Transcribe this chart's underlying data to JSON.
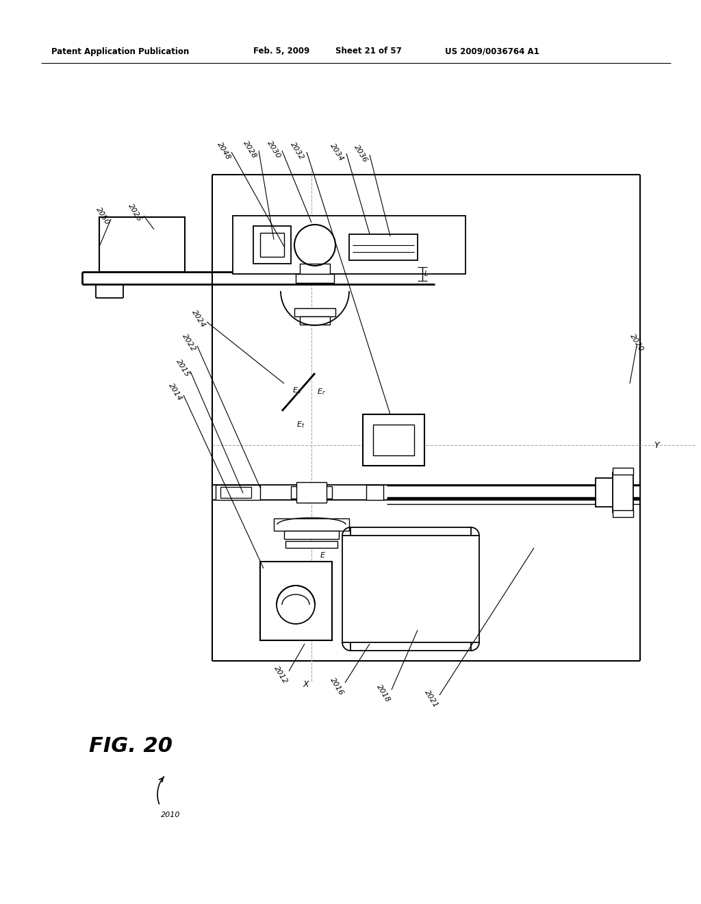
{
  "bg_color": "#ffffff",
  "lc": "#000000",
  "dc": "#aaaaaa",
  "header": {
    "left": "Patent Application Publication",
    "date": "Feb. 5, 2009",
    "sheet": "Sheet 21 of 57",
    "patent": "US 2009/0036764 A1"
  }
}
